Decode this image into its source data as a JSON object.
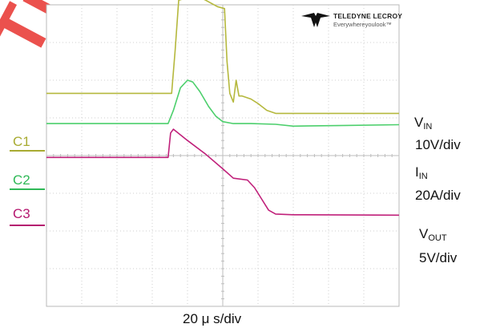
{
  "chart_data": {
    "type": "line",
    "title": "",
    "xlabel": "20 μ s/div",
    "x_scale_per_div": "20 μ s/div",
    "grid": true,
    "divisions": {
      "x": 10,
      "y": 8
    },
    "xlim": [
      0,
      10
    ],
    "ylim": [
      0,
      8
    ],
    "series": [
      {
        "name": "C1",
        "color": "#b5b83d",
        "x": [
          0,
          3.55,
          3.65,
          3.75,
          4.2,
          4.5,
          4.85,
          5.05,
          5.12,
          5.2,
          5.3,
          5.38,
          5.46,
          5.55,
          5.8,
          6.0,
          6.25,
          6.5,
          10
        ],
        "y": [
          5.65,
          5.65,
          6.8,
          8.12,
          8.25,
          8.13,
          7.95,
          7.9,
          6.5,
          5.65,
          5.42,
          6.0,
          5.58,
          5.58,
          5.5,
          5.38,
          5.2,
          5.12,
          5.12
        ]
      },
      {
        "name": "C2",
        "color": "#4ccf6c",
        "x": [
          0,
          3.45,
          3.6,
          3.8,
          4.0,
          4.15,
          4.35,
          4.6,
          4.8,
          5.0,
          5.3,
          5.8,
          6.5,
          7.0,
          8.5,
          10
        ],
        "y": [
          4.85,
          4.85,
          5.2,
          5.8,
          6.0,
          5.95,
          5.7,
          5.3,
          5.05,
          4.9,
          4.85,
          4.85,
          4.83,
          4.78,
          4.8,
          4.82
        ]
      },
      {
        "name": "C3",
        "color": "#c0207a",
        "x": [
          0,
          3.45,
          3.52,
          3.6,
          4.0,
          4.5,
          5.0,
          5.3,
          5.7,
          5.9,
          6.1,
          6.3,
          6.5,
          7.0,
          10
        ],
        "y": [
          3.95,
          3.95,
          4.6,
          4.7,
          4.4,
          4.05,
          3.65,
          3.4,
          3.35,
          3.15,
          2.85,
          2.55,
          2.45,
          2.43,
          2.42
        ]
      }
    ],
    "labels": {
      "vin_sym": "V",
      "vin_sub": "IN",
      "vin_scale": "10V/div",
      "iin_sym": "I",
      "iin_sub": "IN",
      "iin_scale": "20A/div",
      "vout_sym": "V",
      "vout_sub": "OUT",
      "vout_scale": "5V/div"
    },
    "brand": {
      "line1": "TELEDYNE LECROY",
      "line2": "Everywhereyoulook™"
    }
  },
  "watermark": "Tide"
}
